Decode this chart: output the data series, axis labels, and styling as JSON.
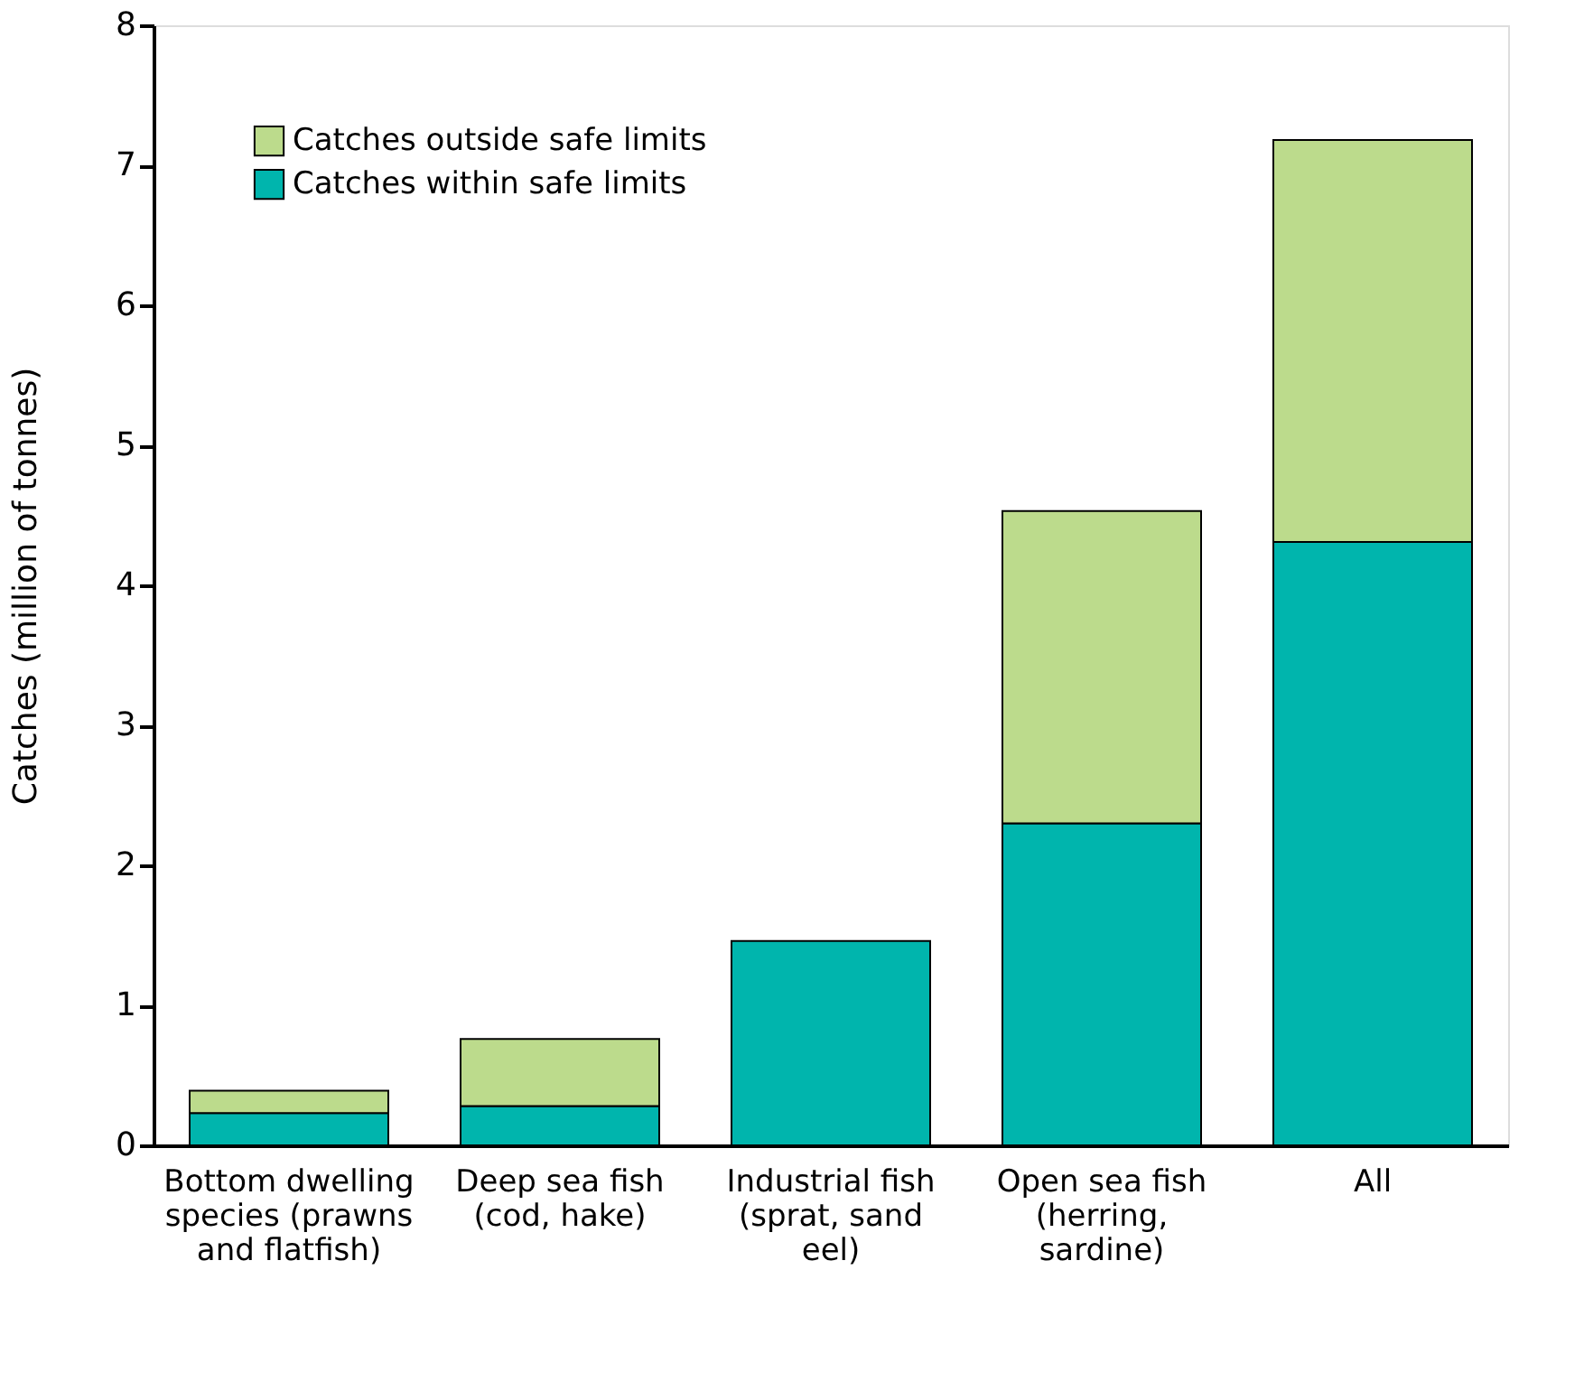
{
  "chart_data": {
    "type": "bar",
    "stacked": true,
    "ylabel": "Catches (million of tonnes)",
    "categories": [
      "Bottom dwelling species (prawns and flatfish)",
      "Deep sea fish (cod, hake)",
      "Industrial fish (sprat, sand eel)",
      "Open sea fish (herring, sardine)",
      "All"
    ],
    "series": [
      {
        "name": "Catches within safe limits",
        "color": "#00b5ad",
        "values": [
          0.23,
          0.28,
          1.46,
          2.3,
          4.31
        ]
      },
      {
        "name": "Catches outside safe limits",
        "color": "#bcdb8c",
        "values": [
          0.16,
          0.48,
          null,
          2.23,
          2.87
        ]
      }
    ],
    "ylim": [
      0,
      8
    ],
    "yticks": [
      0,
      1,
      2,
      3,
      4,
      5,
      6,
      7,
      8
    ],
    "grid": false,
    "legend": "top left"
  }
}
